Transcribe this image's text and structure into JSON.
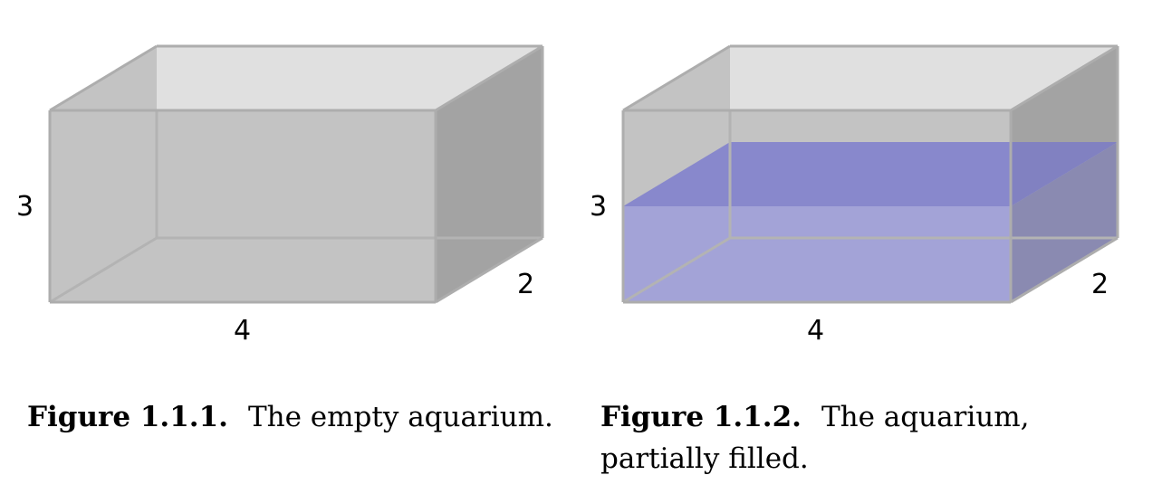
{
  "figures": [
    {
      "label_height": "3",
      "label_width": "4",
      "label_depth": "2",
      "caption_number": "Figure 1.1.1.",
      "caption_text": "The empty aquarium."
    },
    {
      "label_height": "3",
      "label_width": "4",
      "label_depth": "2",
      "caption_number": "Figure 1.1.2.",
      "caption_text": "The aquarium, partially filled."
    }
  ],
  "colors": {
    "glass_front": "#c3c3c3",
    "glass_side": "#a3a3a3",
    "glass_top": "#e0e0e0",
    "edge": "#adadad",
    "water_front": "#a3a3d7",
    "water_top": "#8888cc",
    "water_side": "#8a8ab1"
  }
}
